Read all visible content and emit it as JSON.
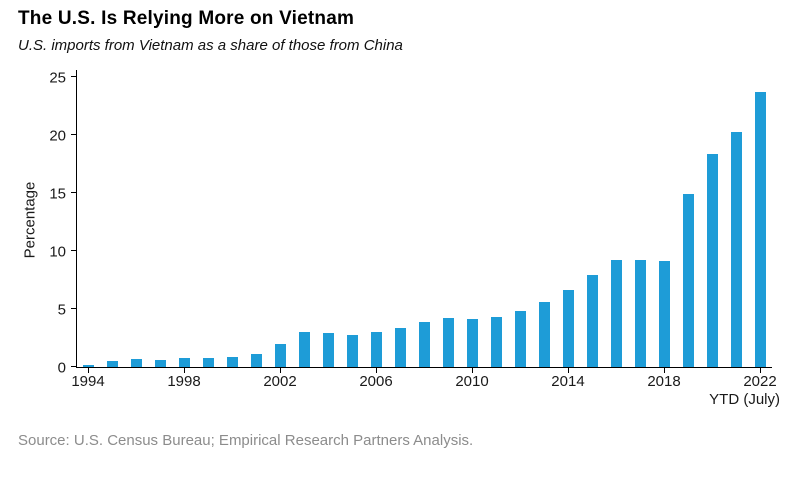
{
  "header": {
    "title": "The U.S. Is Relying More on Vietnam",
    "subtitle": "U.S. imports from Vietnam as a share of those from China"
  },
  "source": "Source: U.S. Census Bureau; Empirical Research Partners Analysis.",
  "colors": {
    "bar": "#1e9cd7",
    "axis": "#000000",
    "text": "#1a1a1a",
    "source_text": "#8c8c8c"
  },
  "chart_data": {
    "type": "bar",
    "title": "The U.S. Is Relying More on Vietnam",
    "subtitle": "U.S. imports from Vietnam as a share of those from China",
    "xlabel": "",
    "ylabel": "Percentage",
    "ylim": [
      0,
      25
    ],
    "yticks": [
      0,
      5,
      10,
      15,
      20,
      25
    ],
    "grid": false,
    "legend": "none",
    "categories": [
      "1994",
      "1995",
      "1996",
      "1997",
      "1998",
      "1999",
      "2000",
      "2001",
      "2002",
      "2003",
      "2004",
      "2005",
      "2006",
      "2007",
      "2008",
      "2009",
      "2010",
      "2011",
      "2012",
      "2013",
      "2014",
      "2015",
      "2016",
      "2017",
      "2018",
      "2019",
      "2020",
      "2021",
      "2022"
    ],
    "values": [
      0.2,
      0.5,
      0.7,
      0.6,
      0.8,
      0.8,
      0.9,
      1.1,
      2.0,
      3.0,
      2.9,
      2.8,
      3.0,
      3.4,
      3.9,
      4.2,
      4.1,
      4.3,
      4.8,
      5.6,
      6.6,
      7.9,
      9.2,
      9.2,
      9.1,
      14.9,
      18.4,
      20.3,
      23.7
    ],
    "xtick_labels": [
      "1994",
      "1998",
      "2002",
      "2006",
      "2010",
      "2014",
      "2018",
      "2022"
    ],
    "xtick_indices": [
      0,
      4,
      8,
      12,
      16,
      20,
      24,
      28
    ],
    "x_note": "YTD (July)"
  }
}
